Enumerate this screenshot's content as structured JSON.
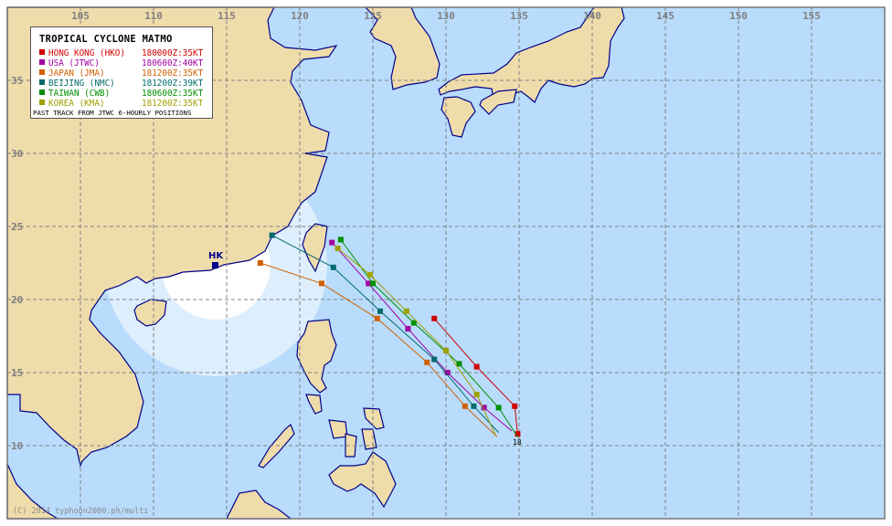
{
  "title": "TROPICAL CYCLONE MATMO",
  "legend": [
    {
      "agency": "HONG KONG (HKO)",
      "advisory": "180000Z:35KT",
      "color": "#d00000"
    },
    {
      "agency": "USA (JTWC)",
      "advisory": "180600Z:40KT",
      "color": "#a000a0"
    },
    {
      "agency": "JAPAN (JMA)",
      "advisory": "181200Z:35KT",
      "color": "#d06000"
    },
    {
      "agency": "BEIJING (NMC)",
      "advisory": "181200Z:39KT",
      "color": "#006a6a"
    },
    {
      "agency": "TAIWAN (CWB)",
      "advisory": "180600Z:35KT",
      "color": "#009000"
    },
    {
      "agency": "KOREA (KMA)",
      "advisory": "181200Z:35KT",
      "color": "#a0a000"
    }
  ],
  "legend_footer": "PAST TRACK FROM JTWC 6-HOURLY POSITIONS",
  "lon_labels": [
    "105",
    "110",
    "115",
    "120",
    "125",
    "130",
    "135",
    "140",
    "145",
    "150",
    "155"
  ],
  "lat_labels": [
    "35",
    "30",
    "25",
    "20",
    "15",
    "10"
  ],
  "hk_label": "HK",
  "position_label": "18",
  "copyright": "(C) 2014 typhoon2000.ph/multi",
  "colors": {
    "sea": "#b9dcfd",
    "land": "#efdcab",
    "coast": "#00008b",
    "grid": "#808080",
    "zone_outer": "#ddeefd",
    "zone_inner": "#ffffff"
  },
  "tracks": [
    {
      "agency": "HONG KONG (HKO)",
      "color": "#d00000",
      "points": [
        [
          134.9,
          10.8
        ],
        [
          134.7,
          12.7
        ],
        [
          132.1,
          15.4
        ],
        [
          129.2,
          18.7
        ]
      ]
    },
    {
      "agency": "USA (JTWC)",
      "color": "#a000a0",
      "points": [
        [
          134.5,
          11.0
        ],
        [
          132.6,
          12.6
        ],
        [
          130.1,
          15.0
        ],
        [
          127.4,
          18.0
        ],
        [
          124.7,
          21.1
        ],
        [
          122.2,
          23.9
        ]
      ]
    },
    {
      "agency": "JAPAN (JMA)",
      "color": "#d06000",
      "points": [
        [
          133.5,
          10.6
        ],
        [
          131.3,
          12.7
        ],
        [
          128.7,
          15.7
        ],
        [
          125.3,
          18.7
        ],
        [
          121.5,
          21.1
        ],
        [
          117.3,
          22.5
        ]
      ]
    },
    {
      "agency": "BEIJING (NMC)",
      "color": "#006a6a",
      "points": [
        [
          133.6,
          10.9
        ],
        [
          131.9,
          12.7
        ],
        [
          129.2,
          15.9
        ],
        [
          125.5,
          19.2
        ],
        [
          122.3,
          22.2
        ],
        [
          118.1,
          24.4
        ]
      ]
    },
    {
      "agency": "TAIWAN (CWB)",
      "color": "#009000",
      "points": [
        [
          134.9,
          10.6
        ],
        [
          133.6,
          12.6
        ],
        [
          130.9,
          15.6
        ],
        [
          127.8,
          18.4
        ],
        [
          125.0,
          21.1
        ],
        [
          122.8,
          24.1
        ]
      ]
    },
    {
      "agency": "KOREA (KMA)",
      "color": "#a0a000",
      "points": [
        [
          133.4,
          10.7
        ],
        [
          132.1,
          13.5
        ],
        [
          130.0,
          16.5
        ],
        [
          127.3,
          19.2
        ],
        [
          124.8,
          21.7
        ],
        [
          122.6,
          23.5
        ]
      ]
    }
  ]
}
